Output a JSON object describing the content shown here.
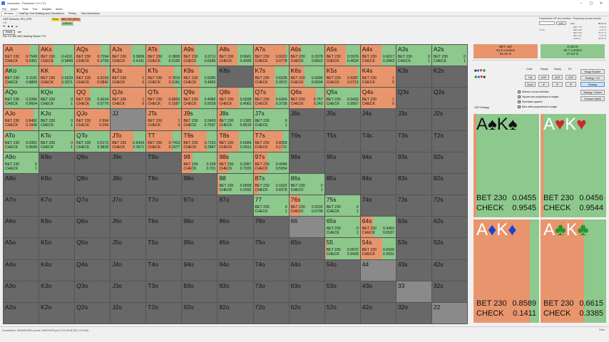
{
  "window": {
    "title": "Unnamed - PioViewer 2.0.7.21"
  },
  "menu": [
    "File",
    "Solver",
    "Tools",
    "Tree",
    "Analysis",
    "About"
  ],
  "tabs": [
    "Browser",
    "PostFlop Tree Building and Calculations",
    "Preflop",
    "View information"
  ],
  "info": {
    "decision": "OOP Decision: PIO_CFR",
    "line2": "> 0",
    "reset_label": "Reset",
    "board_info": "Pot: 0.0 460 460) Starting Stacks 775"
  },
  "actions": {
    "root_label": "Root",
    "bet_label": "BET 230 (50%)",
    "check_label": "CHECK"
  },
  "freq_panel": {
    "title": "Frequencies VS zero combos",
    "title2": "Frequency across runouts",
    "line_label": "Line",
    "button_label": "Pick",
    "on_label": "On",
    "values": [
      {
        "label": "BET 775",
        "value": "0.86 %"
      },
      {
        "label": "BET 345",
        "value": "6.27 %"
      },
      {
        "label": "BET 230",
        "value": "34.07 %"
      },
      {
        "label": "BET 115",
        "value": "0.41 %"
      },
      {
        "label": "CHECK",
        "value": "58.39 %"
      }
    ],
    "limit_value": "80.61 %"
  },
  "summary": {
    "bet": {
      "title": "BET 230",
      "combos": "51.5 combos",
      "pct": "52.46 %"
    },
    "check": {
      "title": "CHECK",
      "combos": "46.7 combos",
      "pct": "47.54 %"
    }
  },
  "controls": {
    "col_heads": [
      "Color",
      "Range",
      "Equity",
      "EV"
    ],
    "row1": [
      "Full",
      "OOP",
      "OOP",
      "OOP"
    ],
    "row2": [
      "Zoom",
      "IP",
      "IP",
      "IP"
    ],
    "right_buttons": [
      "Range Explorer",
      "Strategy + EV",
      "Strategy",
      "Strategy + Reach",
      "Compare Hybrid"
    ],
    "checkboxes": [
      "Refresh on new selection",
      "Square size proportional to weight",
      "Normalize squares",
      "Bars width proportional to weight"
    ],
    "oop_strategy": "OOP Strategy",
    "suit_rows": [
      [
        "♠",
        "♦",
        "♥",
        "♣"
      ],
      [
        "♣",
        "♦",
        "♥",
        "♠"
      ]
    ]
  },
  "grid": [
    [
      {
        "hand": "AA",
        "bet": "0.7549",
        "chk": "0.2451"
      },
      {
        "hand": "AKs",
        "bet": "0.4151",
        "chk": "0.5849"
      },
      {
        "hand": "AQs",
        "bet": "0.7294",
        "chk": "0.2706"
      },
      {
        "hand": "AJs",
        "bet": "0.5809",
        "chk": "0.4191"
      },
      {
        "hand": "ATs",
        "bet": "0.3805",
        "chk": "0.6195"
      },
      {
        "hand": "A9s",
        "bet": "0.3711",
        "chk": "0.6289"
      },
      {
        "hand": "A8s",
        "bet": "0.5661",
        "chk": "0.4339"
      },
      {
        "hand": "A7s",
        "bet": "0.9222",
        "chk": "0.0778"
      },
      {
        "hand": "A6s",
        "bet": "0.3378",
        "chk": "0.6622"
      },
      {
        "hand": "A5s",
        "bet": "0.5976",
        "chk": "0.4024"
      },
      {
        "hand": "A4s",
        "bet": "0.6017",
        "chk": "0.3983"
      },
      {
        "hand": "A3s",
        "bet": "0",
        "chk": "1"
      },
      {
        "hand": "A2s",
        "bet": "0",
        "chk": "1"
      }
    ],
    [
      {
        "hand": "AKo",
        "bet": "0.1191",
        "chk": "0.8809"
      },
      {
        "hand": "KK",
        "bet": "0.6629",
        "chk": "0.3371"
      },
      {
        "hand": "KQs",
        "bet": "0.9159",
        "chk": "0.0841"
      },
      {
        "hand": "KJs",
        "bet": "1",
        "chk": "0"
      },
      {
        "hand": "KTs",
        "bet": "0.7819",
        "chk": "0.2181"
      },
      {
        "hand": "K9s",
        "bet": "0.5095",
        "chk": "0.4905"
      },
      {
        "hand": "K8s",
        "bet": "",
        "chk": ""
      },
      {
        "hand": "K7s",
        "bet": "0.6028",
        "chk": "0.3972"
      },
      {
        "hand": "K6s",
        "bet": "0.4396",
        "chk": "0.5604"
      },
      {
        "hand": "K5s",
        "bet": "0.9287",
        "chk": "0.0713"
      },
      {
        "hand": "K4s",
        "bet": "1",
        "chk": "0"
      },
      {
        "hand": "K3s",
        "bet": "",
        "chk": ""
      },
      {
        "hand": "K2s",
        "bet": "",
        "chk": ""
      }
    ],
    [
      {
        "hand": "AQo",
        "bet": "0.0396",
        "chk": "0.9604"
      },
      {
        "hand": "KQo",
        "bet": "0",
        "chk": "1"
      },
      {
        "hand": "QQ",
        "bet": "0.4224",
        "chk": "0.5776"
      },
      {
        "hand": "QJs",
        "bet": "1",
        "chk": "0"
      },
      {
        "hand": "QTs",
        "bet": "0.8903",
        "chk": "0.1097"
      },
      {
        "hand": "Q9s",
        "bet": "0.4982",
        "chk": "0.5018"
      },
      {
        "hand": "Q8s",
        "bet": "0.5939",
        "chk": "0.4061"
      },
      {
        "hand": "Q7s",
        "bet": "0.6264",
        "chk": "0.3736"
      },
      {
        "hand": "Q6s",
        "bet": "0.757",
        "chk": "0.243"
      },
      {
        "hand": "Q5s",
        "bet": "0.0433",
        "chk": "0.9567"
      },
      {
        "hand": "Q4s",
        "bet": "1",
        "chk": "0"
      },
      {
        "hand": "Q3s",
        "bet": "",
        "chk": ""
      },
      {
        "hand": "Q2s",
        "bet": "",
        "chk": ""
      }
    ],
    [
      {
        "hand": "AJo",
        "bet": "0.8492",
        "chk": "0.1508"
      },
      {
        "hand": "KJo",
        "bet": "0",
        "chk": "1"
      },
      {
        "hand": "QJo",
        "bet": "0.994",
        "chk": "0.006"
      },
      {
        "hand": "JJ",
        "bet": "",
        "chk": ""
      },
      {
        "hand": "JTs",
        "bet": "1",
        "chk": "0"
      },
      {
        "hand": "J9s",
        "bet": "0.2403",
        "chk": "0.7597"
      },
      {
        "hand": "J8s",
        "bet": "0.1382",
        "chk": "0.8618"
      },
      {
        "hand": "J7s",
        "bet": "0",
        "chk": "1"
      },
      {
        "hand": "J6s",
        "bet": "",
        "chk": ""
      },
      {
        "hand": "J5s",
        "bet": "",
        "chk": ""
      },
      {
        "hand": "J4s",
        "bet": "",
        "chk": ""
      },
      {
        "hand": "J3s",
        "bet": "",
        "chk": ""
      },
      {
        "hand": "J2s",
        "bet": "",
        "chk": ""
      }
    ],
    [
      {
        "hand": "ATo",
        "bet": "0.0351",
        "chk": "0.9649"
      },
      {
        "hand": "KTo",
        "bet": "0",
        "chk": "1"
      },
      {
        "hand": "QTo",
        "bet": "0.0172",
        "chk": "0.9828"
      },
      {
        "hand": "JTo",
        "bet": "0.6429",
        "chk": "0.3571"
      },
      {
        "hand": "TT",
        "bet": "0.7423",
        "chk": "0.2577"
      },
      {
        "hand": "T9s",
        "bet": "0.7153",
        "chk": "0.2847"
      },
      {
        "hand": "T8s",
        "bet": "0.6089",
        "chk": "0.3911"
      },
      {
        "hand": "T7s",
        "bet": "0.8269",
        "chk": "0.1731"
      },
      {
        "hand": "T6s",
        "bet": "",
        "chk": ""
      },
      {
        "hand": "T5s",
        "bet": "",
        "chk": ""
      },
      {
        "hand": "T4s",
        "bet": "",
        "chk": ""
      },
      {
        "hand": "T3s",
        "bet": "",
        "chk": ""
      },
      {
        "hand": "T2s",
        "bet": "",
        "chk": ""
      }
    ],
    [
      {
        "hand": "A9o",
        "bet": "0",
        "chk": "1"
      },
      {
        "hand": "K9o",
        "bet": "",
        "chk": ""
      },
      {
        "hand": "Q9o",
        "bet": "",
        "chk": ""
      },
      {
        "hand": "J9o",
        "bet": "",
        "chk": ""
      },
      {
        "hand": "T9o",
        "bet": "",
        "chk": ""
      },
      {
        "hand": "99",
        "bet": "0.299",
        "chk": "0.701"
      },
      {
        "hand": "98s",
        "bet": "0.2967",
        "chk": "0.7033"
      },
      {
        "hand": "97s",
        "bet": "0.4046",
        "chk": "0.5954"
      },
      {
        "hand": "96s",
        "bet": "",
        "chk": ""
      },
      {
        "hand": "95s",
        "bet": "",
        "chk": ""
      },
      {
        "hand": "94s",
        "bet": "",
        "chk": ""
      },
      {
        "hand": "93s",
        "bet": "",
        "chk": ""
      },
      {
        "hand": "92s",
        "bet": "",
        "chk": ""
      }
    ],
    [
      {
        "hand": "A8o",
        "bet": "",
        "chk": ""
      },
      {
        "hand": "K8o",
        "bet": "",
        "chk": ""
      },
      {
        "hand": "Q8o",
        "bet": "",
        "chk": ""
      },
      {
        "hand": "J8o",
        "bet": "",
        "chk": ""
      },
      {
        "hand": "T8o",
        "bet": "",
        "chk": ""
      },
      {
        "hand": "98o",
        "bet": "",
        "chk": ""
      },
      {
        "hand": "88",
        "bet": "0.0608",
        "chk": "0.9392"
      },
      {
        "hand": "87s",
        "bet": "0.1622",
        "chk": "0.8378"
      },
      {
        "hand": "86s",
        "bet": "0",
        "chk": "1"
      },
      {
        "hand": "85s",
        "bet": "",
        "chk": ""
      },
      {
        "hand": "84s",
        "bet": "",
        "chk": ""
      },
      {
        "hand": "83s",
        "bet": "",
        "chk": ""
      },
      {
        "hand": "82s",
        "bet": "",
        "chk": ""
      }
    ],
    [
      {
        "hand": "A7o",
        "bet": "",
        "chk": ""
      },
      {
        "hand": "K7o",
        "bet": "",
        "chk": ""
      },
      {
        "hand": "Q7o",
        "bet": "",
        "chk": ""
      },
      {
        "hand": "J7o",
        "bet": "",
        "chk": ""
      },
      {
        "hand": "T7o",
        "bet": "",
        "chk": ""
      },
      {
        "hand": "97o",
        "bet": "",
        "chk": ""
      },
      {
        "hand": "87o",
        "bet": "",
        "chk": ""
      },
      {
        "hand": "77",
        "bet": "0",
        "chk": "1"
      },
      {
        "hand": "76s",
        "bet": "0.3202",
        "chk": "0.6798"
      },
      {
        "hand": "75s",
        "bet": "0",
        "chk": "1"
      },
      {
        "hand": "74s",
        "bet": "",
        "chk": ""
      },
      {
        "hand": "73s",
        "bet": "",
        "chk": ""
      },
      {
        "hand": "72s",
        "bet": "",
        "chk": ""
      }
    ],
    [
      {
        "hand": "A6o",
        "bet": "",
        "chk": ""
      },
      {
        "hand": "K6o",
        "bet": "",
        "chk": ""
      },
      {
        "hand": "Q6o",
        "bet": "",
        "chk": ""
      },
      {
        "hand": "J6o",
        "bet": "",
        "chk": ""
      },
      {
        "hand": "T6o",
        "bet": "",
        "chk": ""
      },
      {
        "hand": "96o",
        "bet": "",
        "chk": ""
      },
      {
        "hand": "86o",
        "bet": "",
        "chk": ""
      },
      {
        "hand": "76o",
        "bet": "",
        "chk": ""
      },
      {
        "hand": "66",
        "bet": "",
        "chk": ""
      },
      {
        "hand": "65s",
        "bet": "0",
        "chk": "1"
      },
      {
        "hand": "64s",
        "bet": "0.3463",
        "chk": "0.6537"
      },
      {
        "hand": "63s",
        "bet": "",
        "chk": ""
      },
      {
        "hand": "62s",
        "bet": "",
        "chk": ""
      }
    ],
    [
      {
        "hand": "A5o",
        "bet": "",
        "chk": ""
      },
      {
        "hand": "K5o",
        "bet": "",
        "chk": ""
      },
      {
        "hand": "Q5o",
        "bet": "",
        "chk": ""
      },
      {
        "hand": "J5o",
        "bet": "",
        "chk": ""
      },
      {
        "hand": "T5o",
        "bet": "",
        "chk": ""
      },
      {
        "hand": "95o",
        "bet": "",
        "chk": ""
      },
      {
        "hand": "85o",
        "bet": "",
        "chk": ""
      },
      {
        "hand": "75o",
        "bet": "",
        "chk": ""
      },
      {
        "hand": "65o",
        "bet": "",
        "chk": ""
      },
      {
        "hand": "55",
        "bet": "0.0572",
        "chk": "0.9428"
      },
      {
        "hand": "54s",
        "bet": "0.6069",
        "chk": "0.3931"
      },
      {
        "hand": "53s",
        "bet": "",
        "chk": ""
      },
      {
        "hand": "52s",
        "bet": "",
        "chk": ""
      }
    ],
    [
      {
        "hand": "A4o",
        "bet": "",
        "chk": ""
      },
      {
        "hand": "K4o",
        "bet": "",
        "chk": ""
      },
      {
        "hand": "Q4o",
        "bet": "",
        "chk": ""
      },
      {
        "hand": "J4o",
        "bet": "",
        "chk": ""
      },
      {
        "hand": "T4o",
        "bet": "",
        "chk": ""
      },
      {
        "hand": "94o",
        "bet": "",
        "chk": ""
      },
      {
        "hand": "84o",
        "bet": "",
        "chk": ""
      },
      {
        "hand": "74o",
        "bet": "",
        "chk": ""
      },
      {
        "hand": "64o",
        "bet": "",
        "chk": ""
      },
      {
        "hand": "54o",
        "bet": "",
        "chk": ""
      },
      {
        "hand": "44",
        "bet": "",
        "chk": ""
      },
      {
        "hand": "43s",
        "bet": "",
        "chk": ""
      },
      {
        "hand": "42s",
        "bet": "",
        "chk": ""
      }
    ],
    [
      {
        "hand": "A3o",
        "bet": "",
        "chk": ""
      },
      {
        "hand": "K3o",
        "bet": "",
        "chk": ""
      },
      {
        "hand": "Q3o",
        "bet": "",
        "chk": ""
      },
      {
        "hand": "J3o",
        "bet": "",
        "chk": ""
      },
      {
        "hand": "T3o",
        "bet": "",
        "chk": ""
      },
      {
        "hand": "93o",
        "bet": "",
        "chk": ""
      },
      {
        "hand": "83o",
        "bet": "",
        "chk": ""
      },
      {
        "hand": "73o",
        "bet": "",
        "chk": ""
      },
      {
        "hand": "63o",
        "bet": "",
        "chk": ""
      },
      {
        "hand": "53o",
        "bet": "",
        "chk": ""
      },
      {
        "hand": "43o",
        "bet": "",
        "chk": ""
      },
      {
        "hand": "33",
        "bet": "",
        "chk": ""
      },
      {
        "hand": "32s",
        "bet": "",
        "chk": ""
      }
    ],
    [
      {
        "hand": "A2o",
        "bet": "",
        "chk": ""
      },
      {
        "hand": "K2o",
        "bet": "",
        "chk": ""
      },
      {
        "hand": "Q2o",
        "bet": "",
        "chk": ""
      },
      {
        "hand": "J2o",
        "bet": "",
        "chk": ""
      },
      {
        "hand": "T2o",
        "bet": "",
        "chk": ""
      },
      {
        "hand": "92o",
        "bet": "",
        "chk": ""
      },
      {
        "hand": "82o",
        "bet": "",
        "chk": ""
      },
      {
        "hand": "72o",
        "bet": "",
        "chk": ""
      },
      {
        "hand": "62o",
        "bet": "",
        "chk": ""
      },
      {
        "hand": "52o",
        "bet": "",
        "chk": ""
      },
      {
        "hand": "42o",
        "bet": "",
        "chk": ""
      },
      {
        "hand": "32o",
        "bet": "",
        "chk": ""
      },
      {
        "hand": "22",
        "bet": "",
        "chk": ""
      }
    ]
  ],
  "light_cells": [
    "JJ",
    "99",
    "66",
    "44",
    "33",
    "22"
  ],
  "grid_labels": {
    "bet": "BET 230",
    "check": "CHECK"
  },
  "combos": [
    {
      "cards": [
        {
          "r": "A",
          "s": "♠",
          "c": "blk"
        },
        {
          "r": "K",
          "s": "♠",
          "c": "blk"
        }
      ],
      "bet": "0.0455",
      "chk": "0.9545"
    },
    {
      "cards": [
        {
          "r": "A",
          "s": "♥",
          "c": "red"
        },
        {
          "r": "K",
          "s": "♥",
          "c": "red"
        }
      ],
      "bet": "0.0456",
      "chk": "0.9544"
    },
    {
      "cards": [
        {
          "r": "A",
          "s": "♦",
          "c": "blu"
        },
        {
          "r": "K",
          "s": "♦",
          "c": "blu"
        }
      ],
      "bet": "0.8589",
      "chk": "0.1411"
    },
    {
      "cards": [
        {
          "r": "A",
          "s": "♣",
          "c": "grn"
        },
        {
          "r": "K",
          "s": "♣",
          "c": "grn"
        }
      ],
      "bet": "0.6615",
      "chk": "0.3385"
    }
  ],
  "colors": {
    "bet": "#e8956d",
    "check": "#8dc88d",
    "empty": "#686868",
    "pair_bg": "#8a8a8a"
  },
  "status": {
    "left": "Connected to: UPioSOLVER2-pro.exe, PioSOLVER-pro 2.0.0.9 db 18 2022, 13:03:40)",
    "right": "Done"
  }
}
